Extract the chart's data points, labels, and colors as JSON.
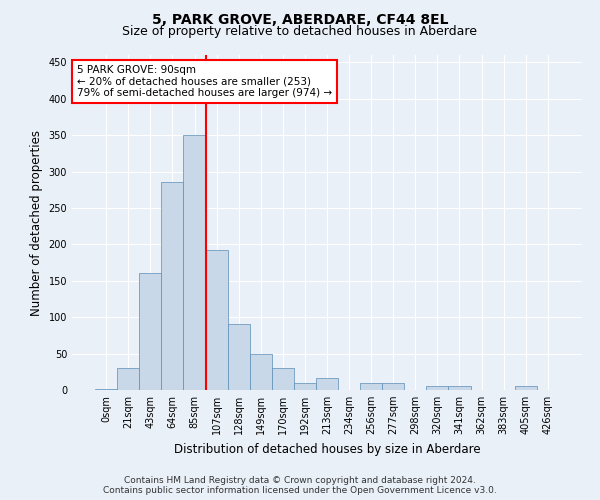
{
  "title": "5, PARK GROVE, ABERDARE, CF44 8EL",
  "subtitle": "Size of property relative to detached houses in Aberdare",
  "xlabel": "Distribution of detached houses by size in Aberdare",
  "ylabel": "Number of detached properties",
  "bar_labels": [
    "0sqm",
    "21sqm",
    "43sqm",
    "64sqm",
    "85sqm",
    "107sqm",
    "128sqm",
    "149sqm",
    "170sqm",
    "192sqm",
    "213sqm",
    "234sqm",
    "256sqm",
    "277sqm",
    "298sqm",
    "320sqm",
    "341sqm",
    "362sqm",
    "383sqm",
    "405sqm",
    "426sqm"
  ],
  "bar_heights": [
    2,
    30,
    160,
    285,
    350,
    192,
    90,
    50,
    30,
    10,
    17,
    0,
    9,
    10,
    0,
    5,
    6,
    0,
    0,
    5,
    0
  ],
  "bar_color": "#c8d8e8",
  "bar_edge_color": "#5b8db8",
  "vline_x": 5,
  "vline_color": "red",
  "ylim": [
    0,
    460
  ],
  "annotation_text": "5 PARK GROVE: 90sqm\n← 20% of detached houses are smaller (253)\n79% of semi-detached houses are larger (974) →",
  "annotation_box_color": "white",
  "annotation_box_edge": "red",
  "footer_line1": "Contains HM Land Registry data © Crown copyright and database right 2024.",
  "footer_line2": "Contains public sector information licensed under the Open Government Licence v3.0.",
  "background_color": "#eaf0f8",
  "plot_background_color": "#eaf0f8",
  "title_fontsize": 10,
  "subtitle_fontsize": 9,
  "axis_fontsize": 8.5,
  "tick_fontsize": 7,
  "footer_fontsize": 6.5,
  "yticks": [
    0,
    50,
    100,
    150,
    200,
    250,
    300,
    350,
    400,
    450
  ]
}
